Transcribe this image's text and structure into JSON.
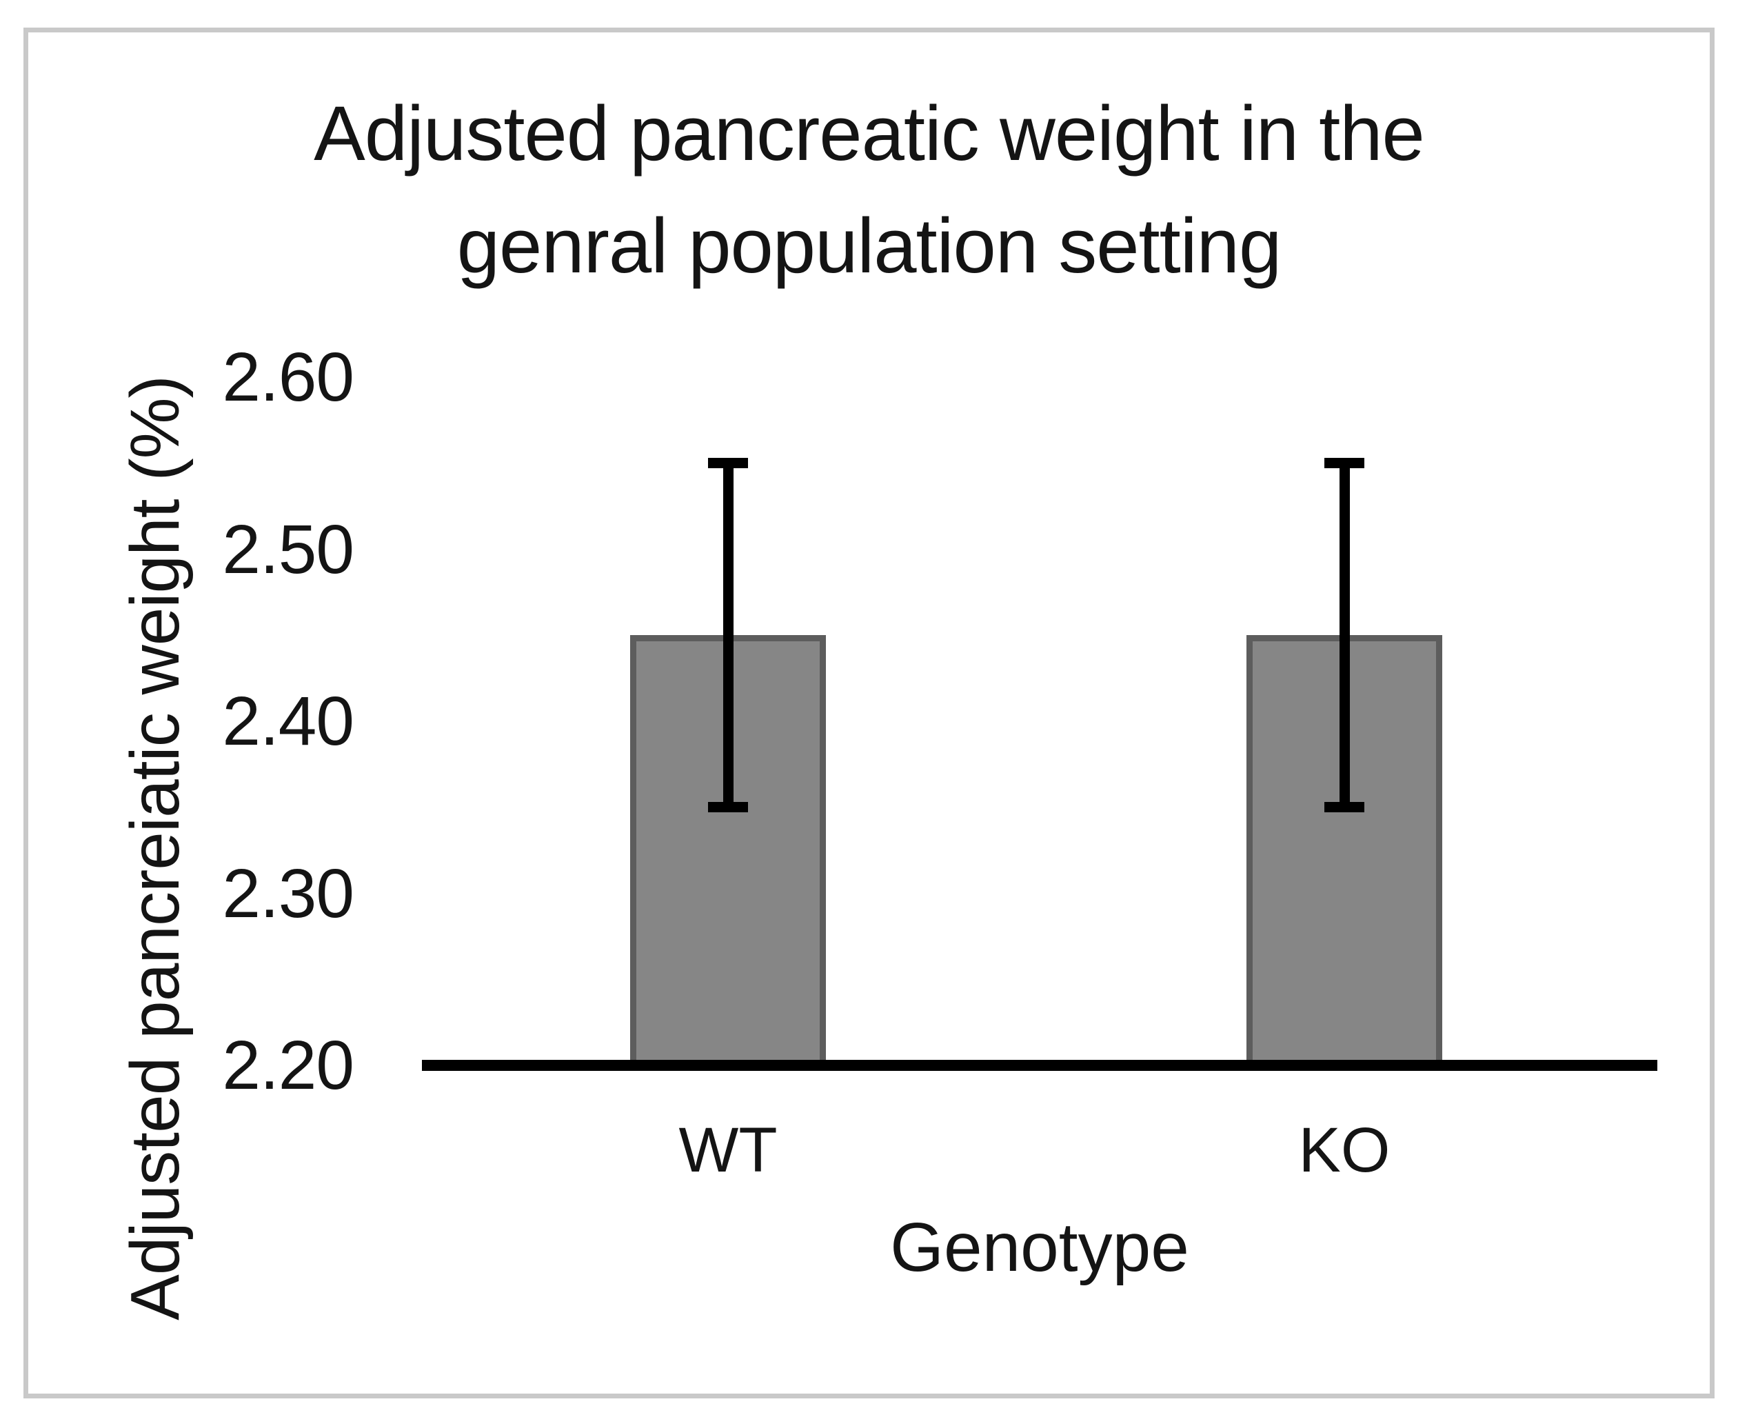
{
  "figure": {
    "background": "#ffffff",
    "frame_color": "#c9c9c9"
  },
  "chart_data": {
    "type": "bar",
    "title": "Adjusted pancreatic weight in the genral population setting",
    "title_lines": {
      "line1": "Adjusted pancreatic weight in the",
      "line2": "genral population setting"
    },
    "xlabel": "Genotype",
    "ylabel": "Adjusted pancreiatic weight (%)",
    "categories": [
      "WT",
      "KO"
    ],
    "values": [
      2.45,
      2.45
    ],
    "error_bars": {
      "low": [
        2.35,
        2.35
      ],
      "high": [
        2.55,
        2.55
      ]
    },
    "ylim": [
      2.2,
      2.6
    ],
    "yticks": [
      {
        "value": 2.6,
        "label": "2.60"
      },
      {
        "value": 2.5,
        "label": "2.50"
      },
      {
        "value": 2.4,
        "label": "2.40"
      },
      {
        "value": 2.3,
        "label": "2.30"
      },
      {
        "value": 2.2,
        "label": "2.20"
      }
    ],
    "grid": false,
    "legend": "none",
    "colors": {
      "bar_fill": "#868686",
      "bar_border": "#5d5d5d",
      "error_bar": "#000000",
      "axis_line": "#000000",
      "text": "#141414"
    }
  }
}
